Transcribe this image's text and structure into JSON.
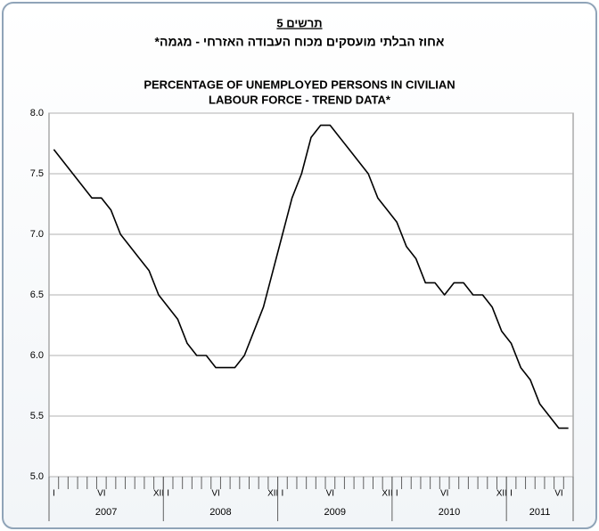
{
  "chart_data": {
    "type": "line",
    "chart_number": "תרשים 5",
    "subtitle": "אחוז הבלתי מועסקים מכוח העבודה האזרחי - מגמה*",
    "title": [
      "PERCENTAGE OF UNEMPLOYED PERSONS IN CIVILIAN",
      "LABOUR FORCE - TREND DATA*"
    ],
    "categories": [
      "I",
      null,
      null,
      null,
      null,
      "VI",
      null,
      null,
      null,
      null,
      null,
      "XII",
      "I",
      null,
      null,
      null,
      null,
      "VI",
      null,
      null,
      null,
      null,
      null,
      "XII",
      "I",
      null,
      null,
      null,
      null,
      "VI",
      null,
      null,
      null,
      null,
      null,
      "XII",
      "I",
      null,
      null,
      null,
      null,
      "VI",
      null,
      null,
      null,
      null,
      null,
      "XII",
      "I",
      null,
      null,
      null,
      null,
      "VI",
      null
    ],
    "years": [
      "2007",
      "2008",
      "2009",
      "2010",
      "2011"
    ],
    "values": [
      7.7,
      7.6,
      7.5,
      7.4,
      7.3,
      7.3,
      7.2,
      7.0,
      6.9,
      6.8,
      6.7,
      6.5,
      6.4,
      6.3,
      6.1,
      6.0,
      6.0,
      5.9,
      5.9,
      5.9,
      6.0,
      6.2,
      6.4,
      6.7,
      7.0,
      7.3,
      7.5,
      7.8,
      7.9,
      7.9,
      7.8,
      7.7,
      7.6,
      7.5,
      7.3,
      7.2,
      7.1,
      6.9,
      6.8,
      6.6,
      6.6,
      6.5,
      6.6,
      6.6,
      6.5,
      6.5,
      6.4,
      6.2,
      6.1,
      5.9,
      5.8,
      5.6,
      5.5,
      5.4,
      5.4
    ],
    "color": "#000000",
    "ylim": [
      5,
      8
    ],
    "yticks": [
      {
        "value": 5,
        "label": "5.0"
      },
      {
        "value": 5.5,
        "label": "5.5"
      },
      {
        "value": 6,
        "label": "6.0"
      },
      {
        "value": 6.5,
        "label": "6.5"
      },
      {
        "value": 7,
        "label": "7.0"
      },
      {
        "value": 7.5,
        "label": "7.5"
      },
      {
        "value": 8,
        "label": "8.0"
      }
    ],
    "grid": true
  }
}
